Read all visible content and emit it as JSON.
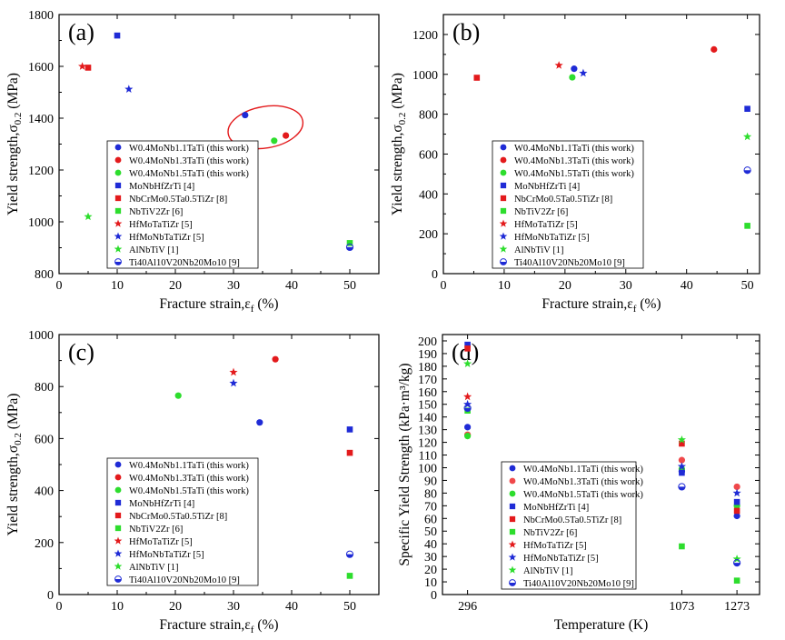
{
  "chart_data": [
    {
      "type": "scatter",
      "panel_label": "(a)",
      "xlabel": "Fracture strain,ε_f (%)",
      "ylabel": "Yield strength,σ_0.2 (MPa)",
      "xlim": [
        0,
        55
      ],
      "ylim": [
        800,
        1800
      ],
      "xticks": [
        0,
        10,
        20,
        30,
        40,
        50
      ],
      "yticks": [
        800,
        1000,
        1200,
        1400,
        1600,
        1800
      ],
      "legend_position": "lower-right",
      "highlight_ellipse": {
        "center": [
          35.5,
          1365
        ],
        "semi_axes": [
          6.5,
          80
        ],
        "rotation_deg": -10,
        "color": "#e31a1c"
      },
      "series": [
        {
          "name": "W0.4MoNb1.1TaTi (this work)",
          "marker": "circle",
          "color": "#1f2bd6",
          "points": [
            [
              32,
              1412
            ]
          ]
        },
        {
          "name": "W0.4MoNb1.3TaTi (this work)",
          "marker": "circle",
          "color": "#e31a1c",
          "points": [
            [
              39,
              1333
            ]
          ]
        },
        {
          "name": "W0.4MoNb1.5TaTi (this work)",
          "marker": "circle",
          "color": "#2ddd2d",
          "points": [
            [
              37,
              1313
            ]
          ]
        },
        {
          "name": "MoNbHfZrTi [4]",
          "marker": "square",
          "color": "#1f2bd6",
          "points": [
            [
              10,
              1719
            ]
          ]
        },
        {
          "name": "NbCrMo0.5Ta0.5TiZr [8]",
          "marker": "square",
          "color": "#e31a1c",
          "points": [
            [
              5,
              1595
            ]
          ]
        },
        {
          "name": "NbTiV2Zr [6]",
          "marker": "square",
          "color": "#2ddd2d",
          "points": [
            [
              50,
              918
            ]
          ]
        },
        {
          "name": "HfMoTaTiZr [5]",
          "marker": "star",
          "color": "#e31a1c",
          "points": [
            [
              4,
              1600
            ]
          ]
        },
        {
          "name": "HfMoNbTaTiZr [5]",
          "marker": "star",
          "color": "#1f2bd6",
          "points": [
            [
              12,
              1512
            ]
          ]
        },
        {
          "name": "AlNbTiV [1]",
          "marker": "star",
          "color": "#2ddd2d",
          "points": [
            [
              5,
              1020
            ]
          ]
        },
        {
          "name": "Ti40Al10V20Nb20Mo10 [9]",
          "marker": "half-circle",
          "color": "#1f2bd6",
          "points": [
            [
              50,
              902
            ]
          ]
        }
      ]
    },
    {
      "type": "scatter",
      "panel_label": "(b)",
      "xlabel": "Fracture strain,ε_f (%)",
      "ylabel": "Yield strength,σ_0.2 (MPa)",
      "xlim": [
        0,
        52
      ],
      "ylim": [
        0,
        1300
      ],
      "xticks": [
        0,
        10,
        20,
        30,
        40,
        50
      ],
      "yticks": [
        0,
        200,
        400,
        600,
        800,
        1000,
        1200
      ],
      "legend_position": "lower-right",
      "series": [
        {
          "name": "W0.4MoNb1.1TaTi (this work)",
          "marker": "circle",
          "color": "#1f2bd6",
          "points": [
            [
              21.5,
              1028
            ]
          ]
        },
        {
          "name": "W0.4MoNb1.3TaTi (this work)",
          "marker": "circle",
          "color": "#e31a1c",
          "points": [
            [
              44.5,
              1125
            ]
          ]
        },
        {
          "name": "W0.4MoNb1.5TaTi (this work)",
          "marker": "circle",
          "color": "#2ddd2d",
          "points": [
            [
              21.2,
              985
            ]
          ]
        },
        {
          "name": "MoNbHfZrTi [4]",
          "marker": "square",
          "color": "#1f2bd6",
          "points": [
            [
              50,
              827
            ]
          ]
        },
        {
          "name": "NbCrMo0.5Ta0.5TiZr [8]",
          "marker": "square",
          "color": "#e31a1c",
          "points": [
            [
              5.5,
              983
            ]
          ]
        },
        {
          "name": "NbTiV2Zr [6]",
          "marker": "square",
          "color": "#2ddd2d",
          "points": [
            [
              50,
              240
            ]
          ]
        },
        {
          "name": "HfMoTaTiZr [5]",
          "marker": "star",
          "color": "#e31a1c",
          "points": [
            [
              19,
              1045
            ]
          ]
        },
        {
          "name": "HfMoNbTaTiZr [5]",
          "marker": "star",
          "color": "#1f2bd6",
          "points": [
            [
              23,
              1006
            ]
          ]
        },
        {
          "name": "AlNbTiV [1]",
          "marker": "star",
          "color": "#2ddd2d",
          "points": [
            [
              50,
              687
            ]
          ]
        },
        {
          "name": "Ti40Al10V20Nb20Mo10 [9]",
          "marker": "half-circle",
          "color": "#1f2bd6",
          "points": [
            [
              50,
              519
            ]
          ]
        }
      ]
    },
    {
      "type": "scatter",
      "panel_label": "(c)",
      "xlabel": "Fracture strain,ε_f (%)",
      "ylabel": "Yield strength,σ_0.2 (MPa)",
      "xlim": [
        0,
        55
      ],
      "ylim": [
        0,
        1000
      ],
      "xticks": [
        0,
        10,
        20,
        30,
        40,
        50
      ],
      "yticks": [
        0,
        200,
        400,
        600,
        800,
        1000
      ],
      "legend_position": "lower-right",
      "series": [
        {
          "name": "W0.4MoNb1.1TaTi (this work)",
          "marker": "circle",
          "color": "#1f2bd6",
          "points": [
            [
              34.5,
              662
            ]
          ]
        },
        {
          "name": "W0.4MoNb1.3TaTi (this work)",
          "marker": "circle",
          "color": "#e31a1c",
          "points": [
            [
              37.2,
              905
            ]
          ]
        },
        {
          "name": "W0.4MoNb1.5TaTi (this work)",
          "marker": "circle",
          "color": "#2ddd2d",
          "points": [
            [
              20.5,
              765
            ]
          ]
        },
        {
          "name": "MoNbHfZrTi [4]",
          "marker": "square",
          "color": "#1f2bd6",
          "points": [
            [
              50,
              635
            ]
          ]
        },
        {
          "name": "NbCrMo0.5Ta0.5TiZr [8]",
          "marker": "square",
          "color": "#e31a1c",
          "points": [
            [
              50,
              545
            ]
          ]
        },
        {
          "name": "NbTiV2Zr [6]",
          "marker": "square",
          "color": "#2ddd2d",
          "points": [
            [
              50,
              72
            ]
          ]
        },
        {
          "name": "HfMoTaTiZr [5]",
          "marker": "star",
          "color": "#e31a1c",
          "points": [
            [
              30,
              855
            ]
          ]
        },
        {
          "name": "HfMoNbTaTiZr [5]",
          "marker": "star",
          "color": "#1f2bd6",
          "points": [
            [
              30,
              813
            ]
          ]
        },
        {
          "name": "AlNbTiV [1]",
          "marker": "star",
          "color": "#2ddd2d",
          "points": []
        },
        {
          "name": "Ti40Al10V20Nb20Mo10 [9]",
          "marker": "half-circle",
          "color": "#1f2bd6",
          "points": [
            [
              50,
              155
            ]
          ]
        }
      ]
    },
    {
      "type": "scatter",
      "panel_label": "(d)",
      "xlabel": "Temperature (K)",
      "ylabel": "Specific Yield Strength (kPa·m³/kg)",
      "xlim": [
        205,
        1355
      ],
      "ylim": [
        0,
        205
      ],
      "xticks": [
        296,
        1073,
        1273
      ],
      "yticks": [
        0,
        10,
        20,
        30,
        40,
        50,
        60,
        70,
        80,
        90,
        100,
        110,
        120,
        130,
        140,
        150,
        160,
        170,
        180,
        190,
        200
      ],
      "legend_position": "lower-right",
      "series": [
        {
          "name": "W0.4MoNb1.1TaTi (this work)",
          "marker": "circle",
          "color": "#1f2bd6",
          "points": [
            [
              296,
              132
            ],
            [
              1073,
              97
            ],
            [
              1273,
              62
            ]
          ]
        },
        {
          "name": "W0.4MoNb1.3TaTi (this work)",
          "marker": "circle",
          "color": "#f0484a",
          "points": [
            [
              296,
              126
            ],
            [
              1073,
              106
            ],
            [
              1273,
              85
            ]
          ]
        },
        {
          "name": "W0.4MoNb1.5TaTi (this work)",
          "marker": "circle",
          "color": "#2ddd2d",
          "points": [
            [
              296,
              125
            ],
            [
              1073,
              99
            ],
            [
              1273,
              70
            ]
          ]
        },
        {
          "name": "MoNbHfZrTi [4]",
          "marker": "square",
          "color": "#1f2bd6",
          "points": [
            [
              296,
              197
            ],
            [
              1073,
              96
            ],
            [
              1273,
              73
            ]
          ]
        },
        {
          "name": "NbCrMo0.5Ta0.5TiZr [8]",
          "marker": "square",
          "color": "#e31a1c",
          "points": [
            [
              296,
              194
            ],
            [
              1073,
              119
            ],
            [
              1273,
              66
            ]
          ]
        },
        {
          "name": "NbTiV2Zr [6]",
          "marker": "square",
          "color": "#2ddd2d",
          "points": [
            [
              296,
              145
            ],
            [
              1073,
              38
            ],
            [
              1273,
              11
            ]
          ]
        },
        {
          "name": "HfMoTaTiZr [5]",
          "marker": "star",
          "color": "#e31a1c",
          "points": [
            [
              296,
              156
            ]
          ]
        },
        {
          "name": "HfMoNbTaTiZr [5]",
          "marker": "star",
          "color": "#1f2bd6",
          "points": [
            [
              296,
              150
            ],
            [
              1073,
              101
            ],
            [
              1273,
              80
            ]
          ]
        },
        {
          "name": "AlNbTiV [1]",
          "marker": "star",
          "color": "#2ddd2d",
          "points": [
            [
              296,
              182
            ],
            [
              1073,
              122
            ],
            [
              1273,
              28
            ]
          ]
        },
        {
          "name": "Ti40Al10V20Nb20Mo10 [9]",
          "marker": "half-circle",
          "color": "#1f2bd6",
          "points": [
            [
              296,
              147
            ],
            [
              1073,
              85
            ],
            [
              1273,
              25
            ]
          ]
        }
      ]
    }
  ]
}
